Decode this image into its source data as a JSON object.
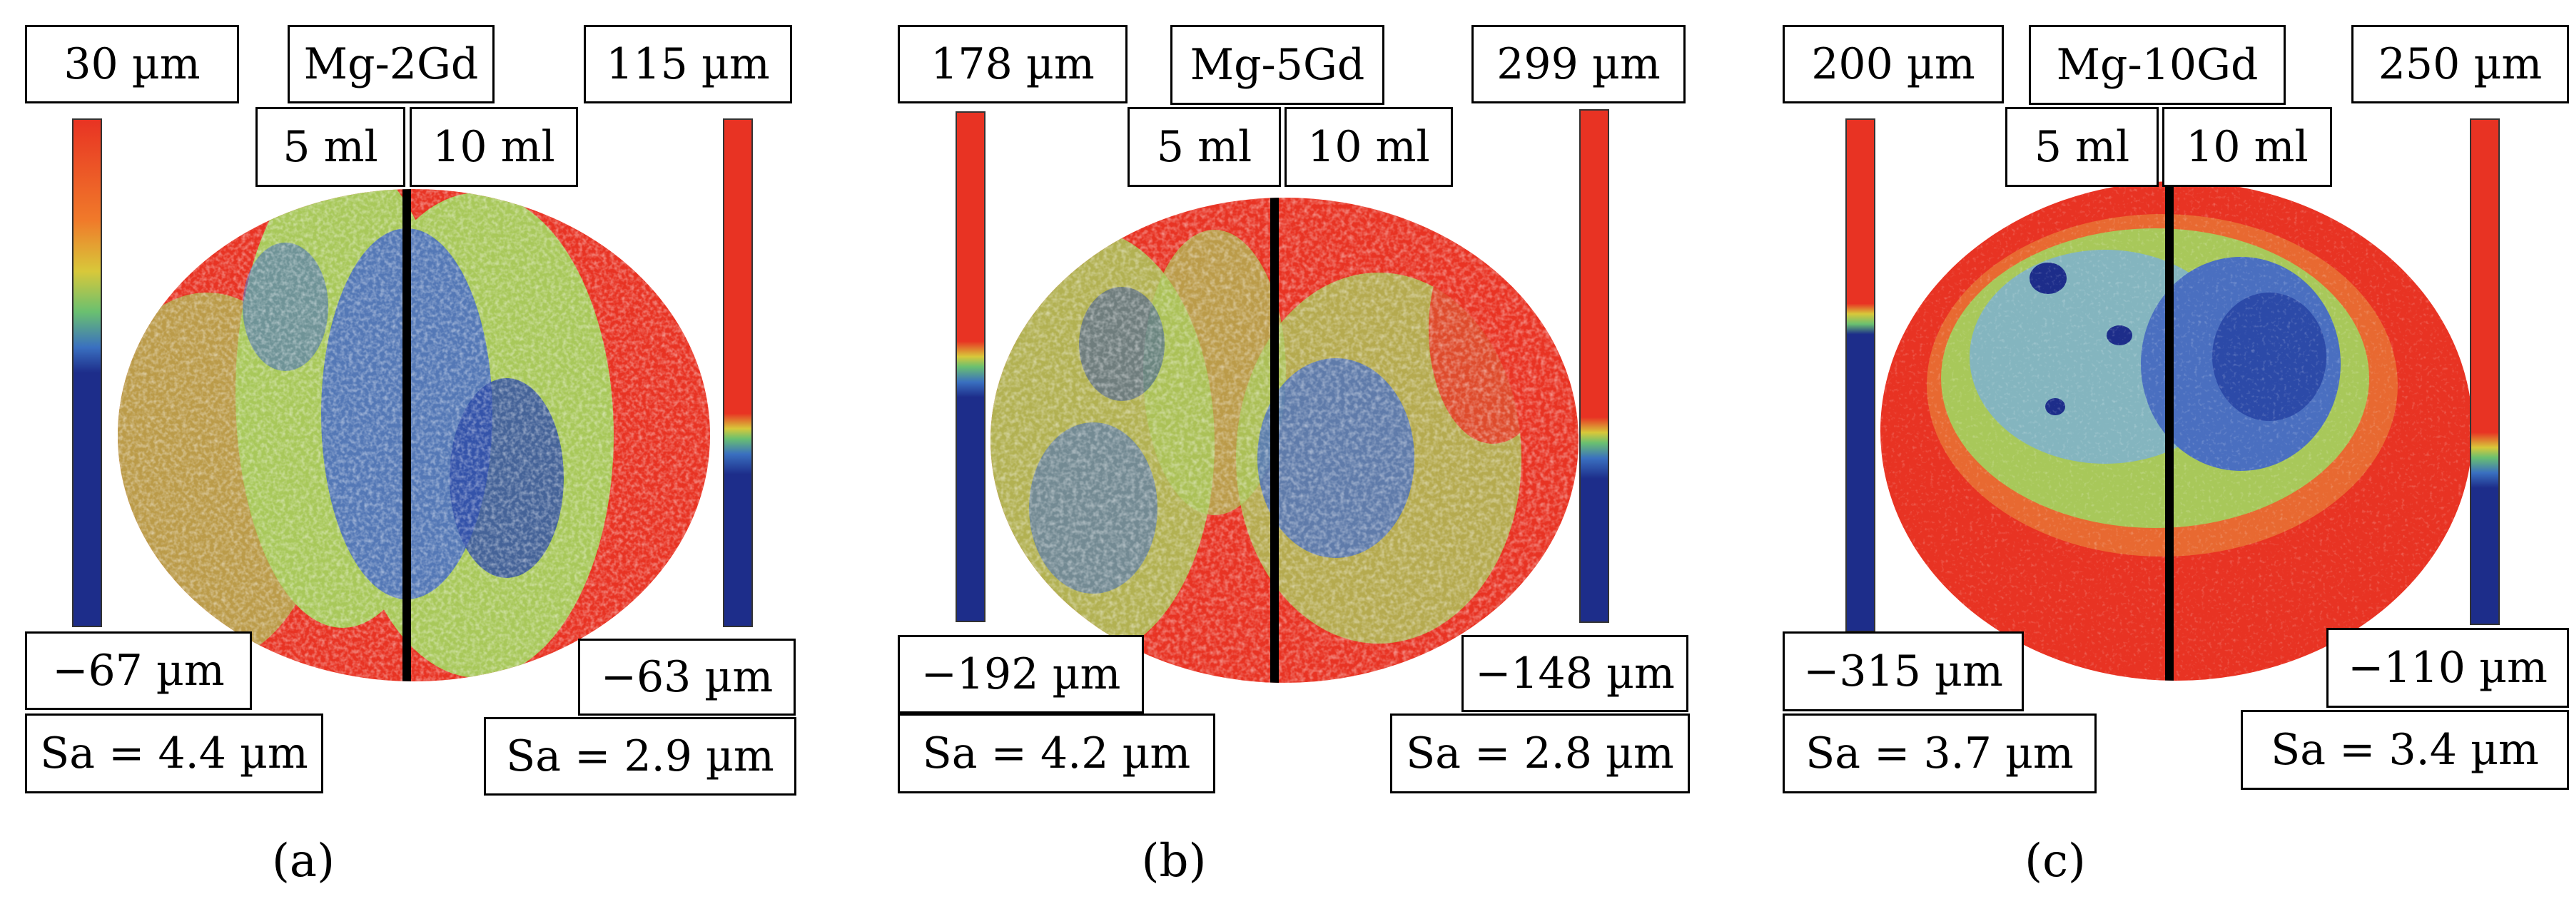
{
  "panels": [
    {
      "alloy": "Mg-2Gd",
      "left": {
        "side_label": "5 ml",
        "max": "30 µm",
        "min": "−67 µm",
        "sa": "Sa = 4.4 µm",
        "scale_transition": 0.5
      },
      "right": {
        "side_label": "10 ml",
        "max": "115 µm",
        "min": "−63 µm",
        "sa": "Sa = 2.9 µm",
        "scale_transition": 0.65
      },
      "caption": "(a)"
    },
    {
      "alloy": "Mg-5Gd",
      "left": {
        "side_label": "5 ml",
        "max": "178 µm",
        "min": "−192 µm",
        "sa": "Sa = 4.2 µm",
        "scale_transition": 0.5
      },
      "right": {
        "side_label": "10 ml",
        "max": "299 µm",
        "min": "−148 µm",
        "sa": "Sa = 2.8 µm",
        "scale_transition": 0.68
      },
      "caption": "(b)"
    },
    {
      "alloy": "Mg-10Gd",
      "left": {
        "side_label": "5 ml",
        "max": "200 µm",
        "min": "−315 µm",
        "sa": "Sa = 3.7 µm",
        "scale_transition": 0.4
      },
      "right": {
        "side_label": "10 ml",
        "max": "250 µm",
        "min": "−110 µm",
        "sa": "Sa = 3.4 µm",
        "scale_transition": 0.68
      },
      "caption": "(c)"
    }
  ],
  "colors": {
    "red": "#e83323",
    "green": "#a8c85a",
    "blue": "#2c4aa8",
    "navy": "#1d2d8a",
    "divider": "#000000"
  }
}
